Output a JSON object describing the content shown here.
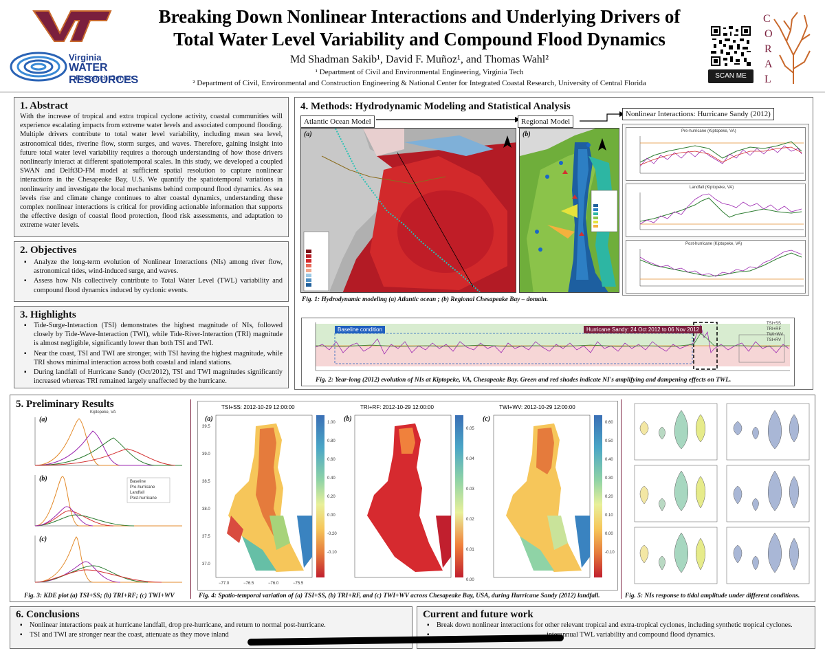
{
  "header": {
    "vt_logo": "VT",
    "vwrrc": {
      "line1": "Virginia",
      "line2": "WATER RESOURCES",
      "line3": "Research Center"
    },
    "title_line1": "Breaking Down Nonlinear Interactions and Underlying Drivers of",
    "title_line2": "Total Water Level Variability and Compound Flood Dynamics",
    "authors": "Md Shadman Sakib¹, David F. Muñoz¹, and Thomas Wahl²",
    "affiliation1": "¹ Department of Civil and Environmental Engineering, Virginia Tech",
    "affiliation2": "² Department of Civil, Environmental and Construction Engineering & National Center for Integrated Coastal Research, University of Central Florida",
    "scan_label": "SCAN ME",
    "coral_letters": [
      "C",
      "O",
      "R",
      "A",
      "L"
    ]
  },
  "abstract": {
    "title": "1. Abstract",
    "text": "With the increase of tropical and extra tropical cyclone activity, coastal communities will experience escalating impacts from extreme water levels and associated compound flooding. Multiple drivers contribute to total water level variability, including mean sea level, astronomical tides, riverine flow, storm surges, and waves. Therefore, gaining insight into future total water level variability requires a thorough understanding of how those drivers nonlinearly interact at different spatiotemporal scales. In this study, we developed a coupled SWAN and Delft3D-FM model at sufficient spatial resolution to capture nonlinear interactions in the Chesapeake Bay, U.S. We quantify the spatiotemporal variations in nonlinearity and investigate the local mechanisms behind compound flood dynamics. As sea levels rise and climate change continues to alter coastal dynamics, understanding these complex nonlinear interactions is critical for providing actionable information that supports the effective design of coastal flood protection, flood risk assessments, and adaptation to extreme water levels."
  },
  "objectives": {
    "title": "2. Objectives",
    "items": [
      "Analyze the long-term evolution of Nonlinear Interactions (NIs) among river flow, astronomical tides, wind-induced surge, and waves.",
      "Assess how NIs collectively contribute to Total Water Level (TWL) variability and compound flood dynamics induced by cyclonic events."
    ]
  },
  "highlights": {
    "title": "3. Highlights",
    "items": [
      "Tide-Surge-Interaction (TSI) demonstrates the highest magnitude of NIs, followed closely by Tide-Wave-Interaction (TWI), while Tide-River-Interaction (TRI) magnitude is almost negligible, significantly lower than both TSI and TWI.",
      "Near the coast, TSI and TWI are stronger, with TSI having the highest magnitude, while TRI shows minimal interaction across both coastal and inland stations.",
      "During landfall of Hurricane Sandy (Oct/2012), TSI and TWI magnitudes significantly increased whereas TRI remained largely unaffected by the hurricane."
    ]
  },
  "methods": {
    "title": "4. Methods: Hydrodynamic Modeling and Statistical Analysis",
    "atlantic_label": "Atlantic Ocean Model",
    "regional_label": "Regional Model",
    "nonlinear_label": "Nonlinear Interactions: Hurricane Sandy (2012)",
    "panel_a": "(a)",
    "panel_b": "(b)",
    "fig1_caption": "Fig. 1: Hydrodynamic modeling (a) Atlantic ocean ; (b) Regional Chesapeake Bay – domain.",
    "sandy_plots": [
      {
        "title": "Pre-hurricane (Kiptopeke, VA)"
      },
      {
        "title": "Landfall (Kiptopeke, VA)"
      },
      {
        "title": "Post-hurricane (Kiptopeke, VA)"
      }
    ],
    "yearlong": {
      "baseline_label": "Baseline condition",
      "sandy_label": "Hurricane Sandy: 24 Oct 2012 to 06 Nov 2012",
      "legend": [
        "TSI+SS",
        "TRI+RF",
        "TWI+WV",
        "TSI+RV"
      ],
      "fig2_caption": "Fig. 2: Year-long (2012) evolution of NIs at Kiptopeke, VA, Chesapeake Bay. Green and red shades indicate NI's amplifying and dampening effects on TWL."
    }
  },
  "results": {
    "title": "5. Preliminary Results",
    "kde_title": "Kiptopeke, VA",
    "kde_labels": [
      "(a)",
      "(b)",
      "(c)"
    ],
    "kde_legend": [
      "Baseline",
      "Pre-hurricane",
      "Landfall",
      "Post-hurricane"
    ],
    "fig3_caption": "Fig. 3: KDE plot (a) TSI+SS; (b) TRI+RF; (c) TWI+WV",
    "maps": [
      {
        "label": "(a)",
        "title": "TSI+SS:  2012-10-29 12:00:00",
        "cbar_label": "TSI+SS(m)",
        "ticks": [
          "1.00",
          "0.80",
          "0.60",
          "0.40",
          "0.20",
          "0.00",
          "-0.20",
          "-0.10",
          "-0.20"
        ]
      },
      {
        "label": "(b)",
        "title": "TRI+RF:  2012-10-29 12:00:00",
        "cbar_label": "TRI+RF(m)",
        "ticks": [
          "0.05",
          "0.04",
          "0.03",
          "0.02",
          "0.01",
          "0.00"
        ]
      },
      {
        "label": "(c)",
        "title": "TWI+WV:  2012-10-29 12:00:00",
        "cbar_label": "TWI+WV(m)",
        "ticks": [
          "0.60",
          "0.50",
          "0.40",
          "0.30",
          "0.20",
          "0.10",
          "0.00",
          "-0.10",
          "-0.20"
        ]
      }
    ],
    "map_yticks": [
      "39.5",
      "39.0",
      "38.5",
      "38.0",
      "37.5",
      "37.0"
    ],
    "map_xticks": [
      "−77.0",
      "−76.5",
      "−76.0",
      "−75.5"
    ],
    "fig4_caption": "Fig. 4: Spatio-temporal variation of (a) TSI+SS, (b) TRI+RF, and (c) TWI+WV across Chesapeake Bay, USA, during Hurricane Sandy (2012) landfall.",
    "fig5_caption": "Fig. 5: NIs response to tidal amplitude under different conditions."
  },
  "conclusions": {
    "title": "6. Conclusions",
    "items": [
      "Nonlinear interactions peak at hurricane landfall, drop pre-hurricane, and return to normal post-hurricane.",
      "TSI and TWI are stronger near the coast, attenuate as they move inland"
    ]
  },
  "future": {
    "title": "Current and future work",
    "items": [
      "Break down nonlinear interactions for other relevant tropical and extra-tropical cyclones, including synthetic tropical cyclones.",
      "interannual TWL variability and compound flood dynamics."
    ]
  },
  "colors": {
    "vt_maroon": "#7a1f3d",
    "vt_orange": "#c9692c",
    "blue": "#1f3f8f"
  }
}
